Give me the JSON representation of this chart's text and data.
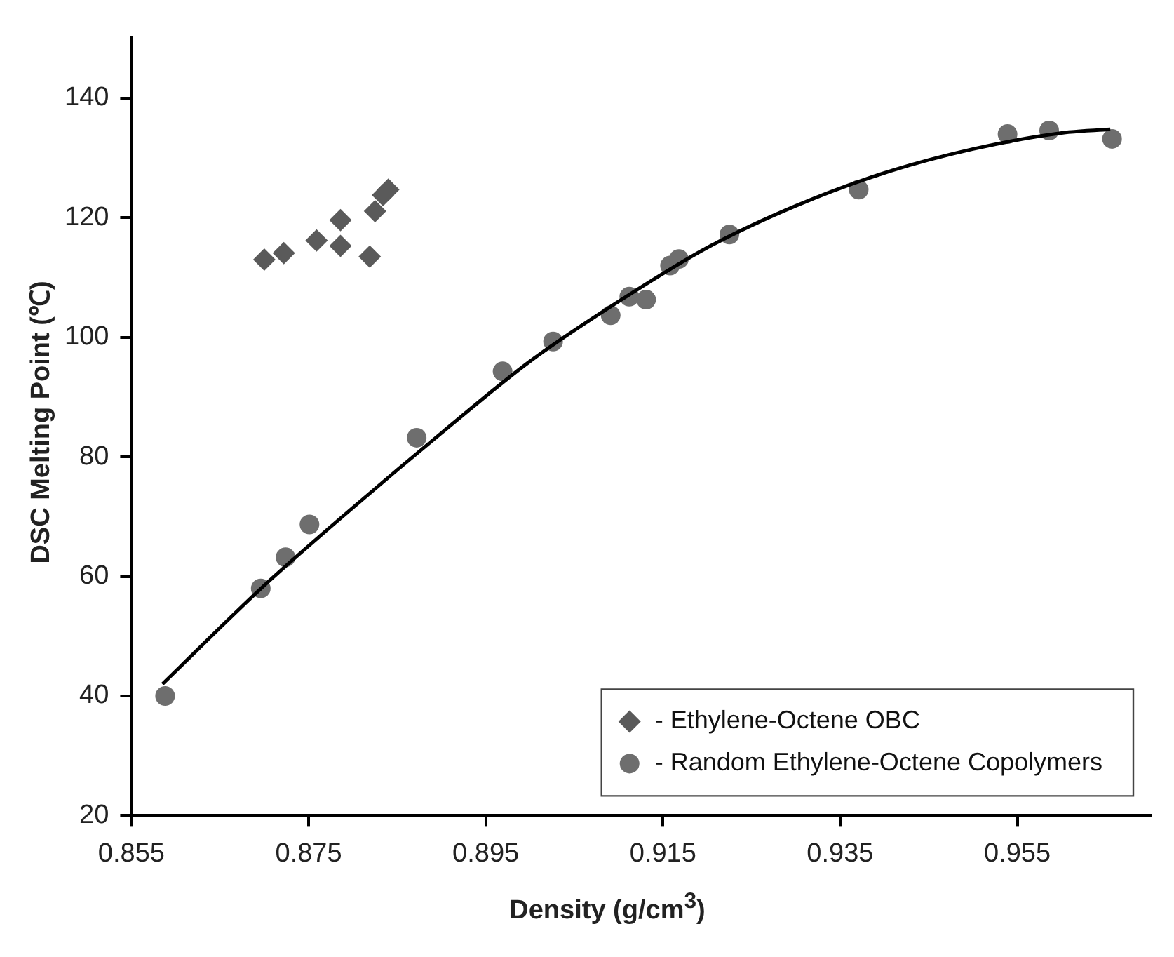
{
  "chart_data": {
    "type": "scatter",
    "xlabel": "Density (g/cm$^{3}$)",
    "ylabel": "DSC Melting Point (℃)",
    "xlim": [
      0.855,
      0.97
    ],
    "xticks": [
      0.855,
      0.875,
      0.895,
      0.915,
      0.935,
      0.955
    ],
    "ylim": [
      20,
      150
    ],
    "yticks": [
      20,
      40,
      60,
      80,
      100,
      120,
      140
    ],
    "grid": false,
    "legend": "bottom right",
    "series": [
      {
        "name": "- Ethylene-Octene OBC",
        "marker": "diamond",
        "color": "#5a5a5a",
        "x": [
          0.87,
          0.8722,
          0.8759,
          0.8786,
          0.8786,
          0.8819,
          0.8825,
          0.8834,
          0.884
        ],
        "values": [
          113.0,
          114.1,
          116.2,
          119.6,
          115.3,
          113.5,
          121.1,
          123.8,
          124.7
        ]
      },
      {
        "name": "- Random Ethylene-Octene Copolymers",
        "marker": "circle",
        "color": "#6e6e6e",
        "x": [
          0.8588,
          0.8696,
          0.8724,
          0.8751,
          0.8872,
          0.8969,
          0.9026,
          0.9091,
          0.9112,
          0.9131,
          0.9158,
          0.9168,
          0.9225,
          0.9371,
          0.9539,
          0.9586,
          0.9657
        ],
        "values": [
          40,
          58,
          63.2,
          68.7,
          83.2,
          94.3,
          99.3,
          103.7,
          106.8,
          106.3,
          112.0,
          113.1,
          117.2,
          124.7,
          134.0,
          134.6,
          133.2
        ]
      },
      {
        "type": "line",
        "marker": "none",
        "color": "#000000",
        "x": [
          0.8585,
          0.87,
          0.88,
          0.89,
          0.9,
          0.91,
          0.92,
          0.93,
          0.94,
          0.95,
          0.96,
          0.9655
        ],
        "values": [
          42,
          58.5,
          71.5,
          84,
          96,
          106,
          115,
          122,
          127.5,
          131.5,
          134.2,
          134.8
        ]
      }
    ]
  }
}
